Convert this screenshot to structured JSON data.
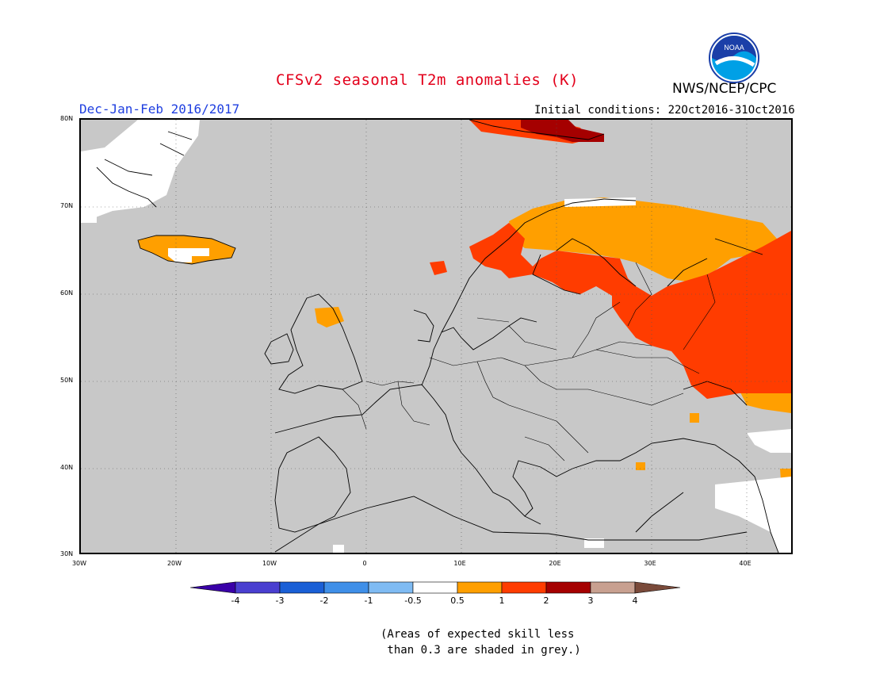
{
  "title": "CFSv2 seasonal T2m anomalies (K)",
  "subtitle": "Dec-Jan-Feb 2016/2017",
  "initial_conditions": "Initial conditions: 22Oct2016-31Oct2016",
  "agency": "NWS/NCEP/CPC",
  "logo_text": "NOAA",
  "lat_labels": [
    "80N",
    "70N",
    "60N",
    "50N",
    "40N",
    "30N"
  ],
  "lon_labels": [
    "30W",
    "20W",
    "10W",
    "0",
    "10E",
    "20E",
    "30E",
    "40E"
  ],
  "colorbar": {
    "labels": [
      "-4",
      "-3",
      "-2",
      "-1",
      "-0.5",
      "0.5",
      "1",
      "2",
      "3",
      "4"
    ],
    "colors": [
      "#3a00a8",
      "#4a3fd0",
      "#1a5fd6",
      "#3f8fe8",
      "#7fbbf3",
      "#ffffff",
      "#ff9f00",
      "#ff3c00",
      "#a50000",
      "#c8a090",
      "#7a4a3a"
    ]
  },
  "note_lines": [
    "(Areas of expected skill less",
    " than 0.3 are shaded in grey.)"
  ],
  "colors": {
    "grey_low_skill": "#c8c8c8",
    "weak_warm": "#ff9f00",
    "warm": "#ff3c00",
    "strong_warm": "#a50000"
  }
}
